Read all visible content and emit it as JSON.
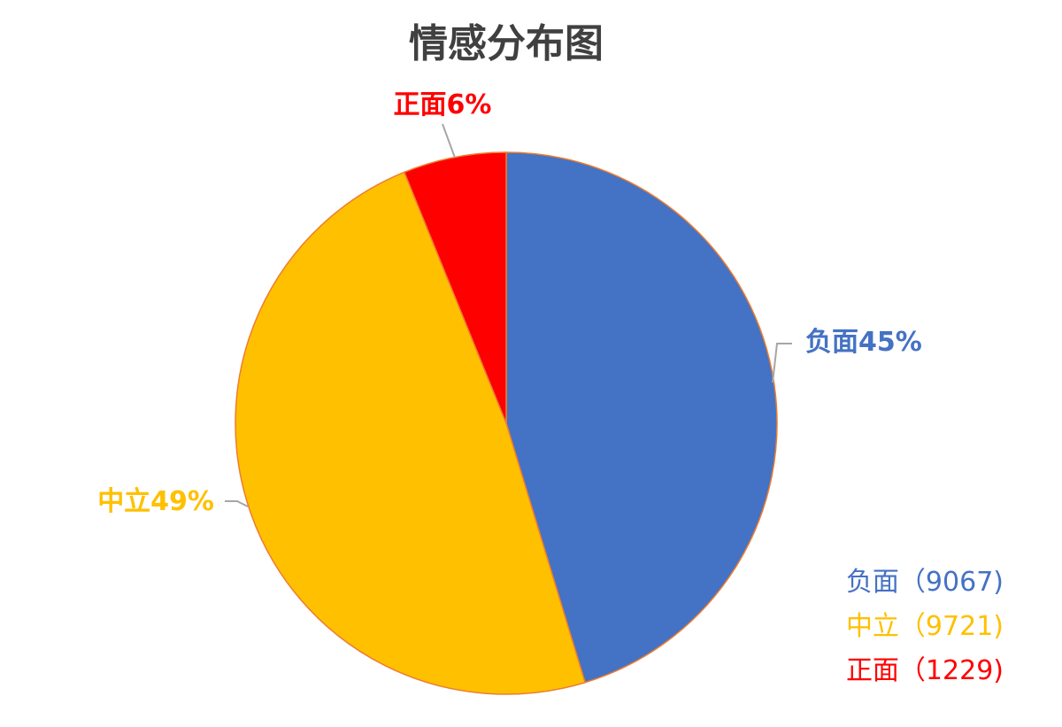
{
  "chart_data": {
    "type": "pie",
    "title": "情感分布图",
    "start_angle_deg": 0,
    "direction": "clockwise",
    "series": [
      {
        "name": "负面",
        "value": 9067,
        "percent_label": "负面45%",
        "legend_label": "负面（9067)",
        "color": "#4472C4"
      },
      {
        "name": "中立",
        "value": 9721,
        "percent_label": "中立49%",
        "legend_label": "中立（9721)",
        "color": "#FFC000"
      },
      {
        "name": "正面",
        "value": 1229,
        "percent_label": "正面6%",
        "legend_label": "正面（1229)",
        "color": "#FF0000"
      }
    ],
    "slice_border_color": "#ED7D31",
    "leader_line_color": "#A6A6A6",
    "title_color": "#404040",
    "legend_position": "bottom-right"
  }
}
